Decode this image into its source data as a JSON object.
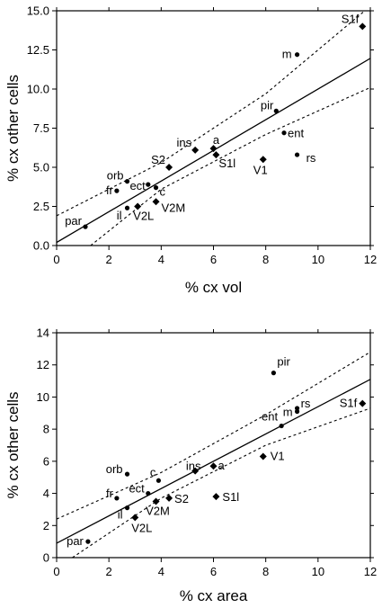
{
  "chart_data": [
    {
      "type": "scatter",
      "xlabel": "% cx vol",
      "ylabel": "% cx other cells",
      "xlim": [
        0,
        12
      ],
      "ylim": [
        0,
        15
      ],
      "xticks": [
        "0",
        "2",
        "4",
        "6",
        "8",
        "10",
        "12"
      ],
      "yticks": [
        "0.0",
        "2.5",
        "5.0",
        "7.5",
        "10.0",
        "12.5",
        "15.0"
      ],
      "grid": false,
      "fit_line": {
        "slope": 0.98,
        "intercept": 0.2
      },
      "conf_upper": [
        [
          0,
          1.9
        ],
        [
          4,
          5.3
        ],
        [
          8,
          9.7
        ],
        [
          12,
          15.3
        ]
      ],
      "conf_lower": [
        [
          1.3,
          0
        ],
        [
          4,
          3.6
        ],
        [
          8,
          7.1
        ],
        [
          12,
          10.1
        ]
      ],
      "points": [
        {
          "label": "S1f",
          "x": 11.7,
          "y": 14.0,
          "marker": "diamond"
        },
        {
          "label": "m",
          "x": 9.2,
          "y": 12.2,
          "marker": "circle"
        },
        {
          "label": "pir",
          "x": 8.4,
          "y": 8.6,
          "marker": "circle"
        },
        {
          "label": "ent",
          "x": 8.7,
          "y": 7.2,
          "marker": "circle"
        },
        {
          "label": "rs",
          "x": 9.2,
          "y": 5.8,
          "marker": "circle"
        },
        {
          "label": "V1",
          "x": 7.9,
          "y": 5.5,
          "marker": "diamond"
        },
        {
          "label": "a",
          "x": 6.0,
          "y": 6.2,
          "marker": "diamond"
        },
        {
          "label": "ins",
          "x": 5.3,
          "y": 6.1,
          "marker": "diamond"
        },
        {
          "label": "S1l",
          "x": 6.1,
          "y": 5.8,
          "marker": "diamond"
        },
        {
          "label": "S2",
          "x": 4.3,
          "y": 5.0,
          "marker": "diamond"
        },
        {
          "label": "orb",
          "x": 2.7,
          "y": 4.1,
          "marker": "circle"
        },
        {
          "label": "fr",
          "x": 2.3,
          "y": 3.5,
          "marker": "circle"
        },
        {
          "label": "ect",
          "x": 3.5,
          "y": 3.9,
          "marker": "circle"
        },
        {
          "label": "c",
          "x": 3.8,
          "y": 3.7,
          "marker": "circle"
        },
        {
          "label": "il",
          "x": 2.7,
          "y": 2.4,
          "marker": "circle"
        },
        {
          "label": "V2L",
          "x": 3.1,
          "y": 2.5,
          "marker": "diamond"
        },
        {
          "label": "V2M",
          "x": 3.8,
          "y": 2.8,
          "marker": "diamond"
        },
        {
          "label": "par",
          "x": 1.1,
          "y": 1.2,
          "marker": "circle"
        }
      ]
    },
    {
      "type": "scatter",
      "xlabel": "% cx area",
      "ylabel": "% cx other cells",
      "xlim": [
        0,
        12
      ],
      "ylim": [
        0,
        14
      ],
      "xticks": [
        "0",
        "2",
        "4",
        "6",
        "8",
        "10",
        "12"
      ],
      "yticks": [
        "0",
        "2",
        "4",
        "6",
        "8",
        "10",
        "12",
        "14"
      ],
      "grid": false,
      "fit_line": {
        "slope": 0.85,
        "intercept": 0.9
      },
      "conf_upper": [
        [
          0,
          2.4
        ],
        [
          4,
          5.3
        ],
        [
          8,
          8.9
        ],
        [
          12,
          12.8
        ]
      ],
      "conf_lower": [
        [
          0.6,
          0
        ],
        [
          4,
          3.7
        ],
        [
          8,
          7.0
        ],
        [
          12,
          9.3
        ]
      ],
      "points": [
        {
          "label": "pir",
          "x": 8.3,
          "y": 11.5,
          "marker": "circle"
        },
        {
          "label": "rs",
          "x": 9.2,
          "y": 9.3,
          "marker": "circle"
        },
        {
          "label": "m",
          "x": 9.2,
          "y": 9.1,
          "marker": "circle"
        },
        {
          "label": "S1f",
          "x": 11.7,
          "y": 9.6,
          "marker": "diamond"
        },
        {
          "label": "ent",
          "x": 8.6,
          "y": 8.2,
          "marker": "circle"
        },
        {
          "label": "V1",
          "x": 7.9,
          "y": 6.3,
          "marker": "diamond"
        },
        {
          "label": "a",
          "x": 6.0,
          "y": 5.7,
          "marker": "diamond"
        },
        {
          "label": "ins",
          "x": 5.3,
          "y": 5.4,
          "marker": "diamond"
        },
        {
          "label": "c",
          "x": 3.9,
          "y": 4.8,
          "marker": "circle"
        },
        {
          "label": "orb",
          "x": 2.7,
          "y": 5.2,
          "marker": "circle"
        },
        {
          "label": "ect",
          "x": 3.5,
          "y": 4.0,
          "marker": "circle"
        },
        {
          "label": "fr",
          "x": 2.3,
          "y": 3.7,
          "marker": "circle"
        },
        {
          "label": "S2",
          "x": 4.3,
          "y": 3.7,
          "marker": "diamond"
        },
        {
          "label": "S1l",
          "x": 6.1,
          "y": 3.8,
          "marker": "diamond"
        },
        {
          "label": "il",
          "x": 2.7,
          "y": 3.1,
          "marker": "circle"
        },
        {
          "label": "V2M",
          "x": 3.8,
          "y": 3.5,
          "marker": "diamond"
        },
        {
          "label": "V2L",
          "x": 3.0,
          "y": 2.5,
          "marker": "diamond"
        },
        {
          "label": "par",
          "x": 1.2,
          "y": 1.0,
          "marker": "circle"
        }
      ]
    }
  ]
}
